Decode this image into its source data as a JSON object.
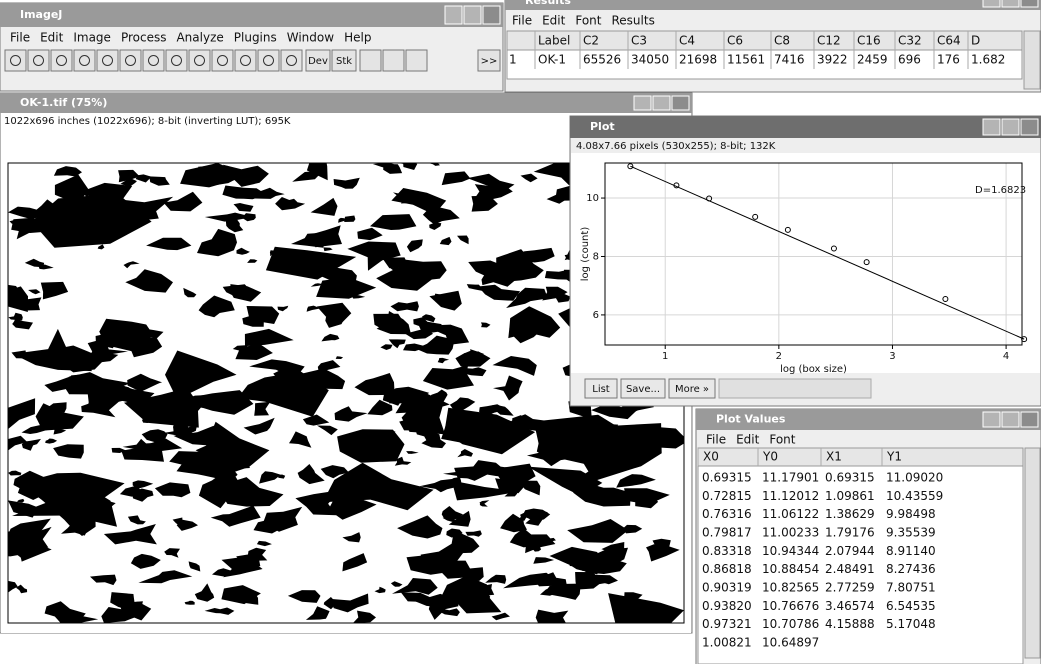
{
  "imagej": {
    "title": "ImageJ",
    "menu": [
      "File",
      "Edit",
      "Image",
      "Process",
      "Analyze",
      "Plugins",
      "Window",
      "Help"
    ],
    "tools": [
      "Dev",
      "Stk",
      ">>"
    ]
  },
  "results": {
    "title": "Results",
    "menu": [
      "File",
      "Edit",
      "Font",
      "Results"
    ],
    "header": [
      "Label",
      "C2",
      "C3",
      "C4",
      "C6",
      "C8",
      "C12",
      "C16",
      "C32",
      "C64",
      "D"
    ],
    "rows": [
      [
        "1",
        "OK-1",
        65526,
        34050,
        21698,
        11561,
        7416,
        3922,
        2459,
        696,
        176,
        1.682
      ]
    ]
  },
  "image_window": {
    "title": "OK-1.tif (75%)",
    "info": "1022x696 inches (1022x696); 8-bit (inverting LUT); 695K"
  },
  "plot": {
    "title": "Plot",
    "info": "4.08x7.66 pixels (530x255); 8-bit; 132K",
    "annotation": "D=1.6823",
    "xlabel": "log (box size)",
    "ylabel": "log (count)",
    "xlim": [
      0.47,
      4.14
    ],
    "ylim": [
      4.97,
      11.2
    ],
    "xticks": [
      1,
      2,
      3,
      4
    ],
    "yticks": [
      6,
      8,
      10
    ],
    "grid": true,
    "buttons": [
      "List",
      "Save...",
      "More »"
    ]
  },
  "plot_values": {
    "title": "Plot Values",
    "menu": [
      "File",
      "Edit",
      "Font"
    ],
    "header": [
      "X0",
      "Y0",
      "X1",
      "Y1"
    ],
    "rows": [
      [
        "0.69315",
        "11.17901",
        "0.69315",
        "11.09020"
      ],
      [
        "0.72815",
        "11.12012",
        "1.09861",
        "10.43559"
      ],
      [
        "0.76316",
        "11.06122",
        "1.38629",
        "9.98498"
      ],
      [
        "0.79817",
        "11.00233",
        "1.79176",
        "9.35539"
      ],
      [
        "0.83318",
        "10.94344",
        "2.07944",
        "8.91140"
      ],
      [
        "0.86818",
        "10.88454",
        "2.48491",
        "8.27436"
      ],
      [
        "0.90319",
        "10.82565",
        "2.77259",
        "7.80751"
      ],
      [
        "0.93820",
        "10.76676",
        "3.46574",
        "6.54535"
      ],
      [
        "0.97321",
        "10.70786",
        "4.15888",
        "5.17048"
      ],
      [
        "1.00821",
        "10.64897"
      ]
    ]
  }
}
